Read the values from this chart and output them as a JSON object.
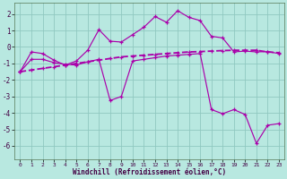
{
  "background_color": "#b8e8e0",
  "grid_color": "#90c8c0",
  "line_color": "#aa00aa",
  "hours": [
    0,
    1,
    2,
    3,
    4,
    5,
    6,
    7,
    8,
    9,
    10,
    11,
    12,
    13,
    14,
    15,
    16,
    17,
    18,
    19,
    20,
    21,
    22,
    23
  ],
  "line_upper": [
    -1.5,
    -0.3,
    -0.4,
    -0.8,
    -1.1,
    -0.85,
    -0.2,
    1.05,
    0.35,
    0.3,
    0.75,
    1.2,
    1.85,
    1.5,
    2.2,
    1.8,
    1.6,
    0.65,
    0.55,
    -0.3,
    -0.25,
    -0.3,
    -0.28,
    -0.4
  ],
  "line_lower": [
    -1.5,
    -0.75,
    -0.75,
    -0.95,
    -1.05,
    -1.1,
    -0.9,
    -0.75,
    -3.25,
    -3.0,
    -0.85,
    -0.75,
    -0.65,
    -0.55,
    -0.5,
    -0.45,
    -0.4,
    -3.8,
    -4.05,
    -3.8,
    -4.1,
    -5.85,
    -4.75,
    -4.65
  ],
  "line_trend": [
    -1.5,
    -1.4,
    -1.3,
    -1.2,
    -1.1,
    -1.0,
    -0.9,
    -0.8,
    -0.7,
    -0.6,
    -0.55,
    -0.5,
    -0.45,
    -0.4,
    -0.35,
    -0.3,
    -0.28,
    -0.25,
    -0.22,
    -0.2,
    -0.2,
    -0.2,
    -0.3,
    -0.35
  ],
  "ylim": [
    -6.8,
    2.7
  ],
  "yticks": [
    -6,
    -5,
    -4,
    -3,
    -2,
    -1,
    0,
    1,
    2
  ],
  "xticks": [
    0,
    1,
    2,
    3,
    4,
    5,
    6,
    7,
    8,
    9,
    10,
    11,
    12,
    13,
    14,
    15,
    16,
    17,
    18,
    19,
    20,
    21,
    22,
    23
  ],
  "xlabel": "Windchill (Refroidissement éolien,°C)"
}
